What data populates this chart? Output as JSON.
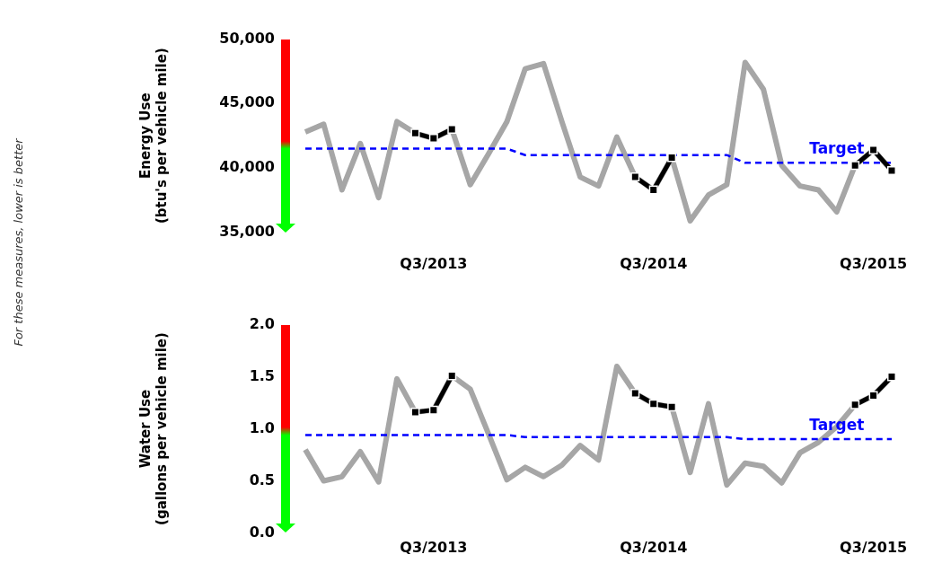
{
  "chart_data": [
    {
      "type": "line",
      "ylabel": "Energy Use\n(btu's per vehicle mile)",
      "annotations": [
        "For these measures, lower is better"
      ],
      "categories": [
        null,
        null,
        null,
        null,
        null,
        null,
        null,
        "Q3/2013",
        null,
        null,
        null,
        null,
        null,
        null,
        null,
        null,
        null,
        null,
        null,
        "Q3/2014",
        null,
        null,
        null,
        null,
        null,
        null,
        null,
        null,
        null,
        null,
        null,
        "Q3/2015",
        null
      ],
      "ylim": [
        35000,
        50000
      ],
      "yticks": [
        {
          "value": 35000,
          "label": "35,000"
        },
        {
          "value": 40000,
          "label": "40,000"
        },
        {
          "value": 45000,
          "label": "45,000"
        },
        {
          "value": 50000,
          "label": "50,000"
        }
      ],
      "marker": "none",
      "grid": false,
      "series": [
        {
          "color": "#a6a6a6",
          "values": [
            42800,
            43400,
            38300,
            41900,
            37700,
            43600,
            42700,
            42300,
            43000,
            38700,
            41100,
            43600,
            47700,
            48100,
            43600,
            39300,
            38600,
            42400,
            39300,
            38300,
            40800,
            35900,
            37900,
            38700,
            48200,
            46100,
            40200,
            38600,
            38300,
            36600,
            40200,
            41400,
            39800
          ]
        },
        {
          "name": "Target",
          "color": "#0000ff",
          "line_style": "dashed",
          "values": [
            41500,
            41500,
            41500,
            41500,
            41500,
            41500,
            41500,
            41500,
            41500,
            41500,
            41500,
            41500,
            41000,
            41000,
            41000,
            41000,
            41000,
            41000,
            41000,
            41000,
            41000,
            41000,
            41000,
            41000,
            40400,
            40400,
            40400,
            40400,
            40400,
            40400,
            40400,
            40400,
            40400
          ]
        },
        {
          "color": "#000000",
          "marker": "square",
          "values": [
            null,
            null,
            null,
            null,
            null,
            null,
            42700,
            42300,
            43000,
            null,
            null,
            null,
            null,
            null,
            null,
            null,
            null,
            null,
            39300,
            38300,
            40800,
            null,
            null,
            null,
            null,
            null,
            null,
            null,
            null,
            null,
            40200,
            41400,
            39800
          ]
        }
      ]
    },
    {
      "type": "line",
      "ylabel": "Water Use\n(gallons per vehicle mile)",
      "categories": [
        null,
        null,
        null,
        null,
        null,
        null,
        null,
        "Q3/2013",
        null,
        null,
        null,
        null,
        null,
        null,
        null,
        null,
        null,
        null,
        null,
        "Q3/2014",
        null,
        null,
        null,
        null,
        null,
        null,
        null,
        null,
        null,
        null,
        null,
        "Q3/2015",
        null
      ],
      "ylim": [
        0,
        2
      ],
      "yticks": [
        {
          "value": 0,
          "label": "0.0"
        },
        {
          "value": 0.5,
          "label": "0.5"
        },
        {
          "value": 1,
          "label": "1.0"
        },
        {
          "value": 1.5,
          "label": "1.5"
        },
        {
          "value": 2,
          "label": "2.0"
        }
      ],
      "marker": "none",
      "grid": false,
      "series": [
        {
          "color": "#a6a6a6",
          "values": [
            0.8,
            0.5,
            0.54,
            0.78,
            0.49,
            1.48,
            1.16,
            1.18,
            1.51,
            1.38,
            0.95,
            0.51,
            0.63,
            0.54,
            0.65,
            0.84,
            0.7,
            1.6,
            1.34,
            1.24,
            1.21,
            0.58,
            1.24,
            0.46,
            0.67,
            0.64,
            0.48,
            0.77,
            0.87,
            1.02,
            1.23,
            1.32,
            1.5
          ]
        },
        {
          "name": "Target",
          "color": "#0000ff",
          "line_style": "dashed",
          "values": [
            0.94,
            0.94,
            0.94,
            0.94,
            0.94,
            0.94,
            0.94,
            0.94,
            0.94,
            0.94,
            0.94,
            0.94,
            0.92,
            0.92,
            0.92,
            0.92,
            0.92,
            0.92,
            0.92,
            0.92,
            0.92,
            0.92,
            0.92,
            0.92,
            0.9,
            0.9,
            0.9,
            0.9,
            0.9,
            0.9,
            0.9,
            0.9,
            0.9
          ]
        },
        {
          "color": "#000000",
          "marker": "square",
          "values": [
            null,
            null,
            null,
            null,
            null,
            null,
            1.16,
            1.18,
            1.51,
            null,
            null,
            null,
            null,
            null,
            null,
            null,
            null,
            null,
            1.34,
            1.24,
            1.21,
            null,
            null,
            null,
            null,
            null,
            null,
            null,
            null,
            null,
            1.23,
            1.32,
            1.5
          ]
        }
      ]
    }
  ]
}
